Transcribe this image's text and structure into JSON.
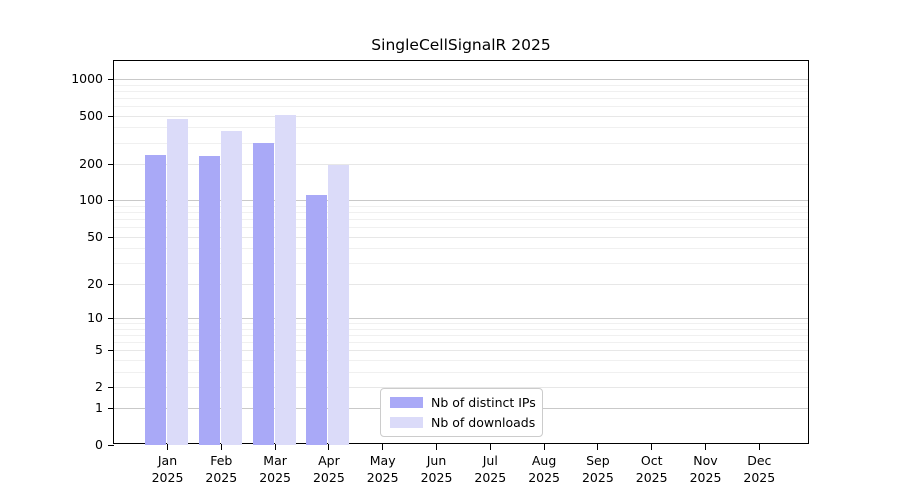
{
  "chart_data": {
    "type": "bar",
    "title": "SingleCellSignalR 2025",
    "xlabel": "",
    "ylabel": "",
    "y_scale": "log10(1+v)",
    "y_ticks": [
      0,
      1,
      2,
      5,
      10,
      20,
      50,
      100,
      200,
      500,
      1000
    ],
    "ylim": [
      0,
      1380
    ],
    "grid": "horizontal major (decades, gray) + minor (light gray)",
    "categories": [
      "Jan",
      "Feb",
      "Mar",
      "Apr",
      "May",
      "Jun",
      "Jul",
      "Aug",
      "Sep",
      "Oct",
      "Nov",
      "Dec"
    ],
    "x_year": "2025",
    "series": [
      {
        "name": "Nb of distinct IPs",
        "key": "distinct-ips",
        "color": "#a9a9f7",
        "values": [
          237,
          233,
          296,
          110,
          null,
          null,
          null,
          null,
          null,
          null,
          null,
          null
        ]
      },
      {
        "name": "Nb of downloads",
        "key": "downloads",
        "color": "#dbdbf9",
        "values": [
          466,
          375,
          510,
          195,
          null,
          null,
          null,
          null,
          null,
          null,
          null,
          null
        ]
      }
    ],
    "legend_position": "lower center inside plot",
    "colors": {
      "axis": "#000000",
      "grid_major": "#c9c9c9",
      "grid_mid": "#e7e7e7",
      "grid_minor": "#f0f0f0",
      "legend_border": "#cccccc",
      "background": "#ffffff"
    }
  }
}
